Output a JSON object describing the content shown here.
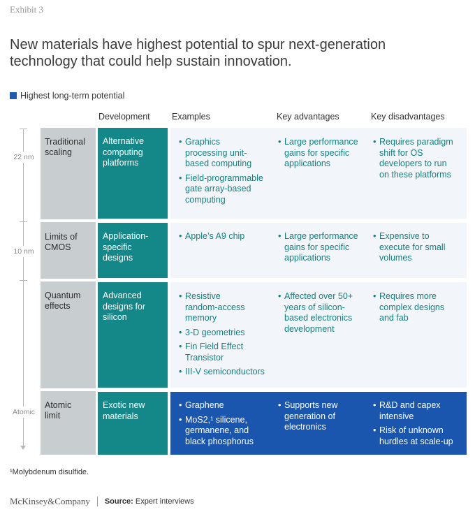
{
  "exhibit": "Exhibit 3",
  "title_line1": "New materials have highest potential to spur next-generation",
  "title_line2": "technology that could help sustain innovation.",
  "legend": {
    "label": "Highest long-term potential",
    "color": "#1c5bb0"
  },
  "headers": {
    "development": "Development",
    "examples": "Examples",
    "advantages": "Key advantages",
    "disadvantages": "Key disadvantages"
  },
  "scale": {
    "nm22": "22 nm",
    "nm10": "10 nm",
    "atomic": "Atomic"
  },
  "rows": [
    {
      "limit": [
        "Traditional",
        "scaling"
      ],
      "development": [
        "Alternative",
        "computing",
        "platforms"
      ],
      "examples": [
        [
          "Graphics",
          "processing unit-",
          "based computing"
        ],
        [
          "Field-programmable",
          "gate array-based",
          "computing"
        ]
      ],
      "advantages": [
        [
          "Large performance",
          "gains for specific",
          "applications"
        ]
      ],
      "disadvantages": [
        [
          "Requires paradigm",
          "shift for OS",
          "developers to run",
          "on these platforms"
        ]
      ]
    },
    {
      "limit": [
        "Limits of",
        "CMOS"
      ],
      "development": [
        "Application-",
        "specific",
        "designs"
      ],
      "examples": [
        [
          "Apple’s A9 chip"
        ]
      ],
      "advantages": [
        [
          "Large performance",
          "gains for specific",
          "applications"
        ]
      ],
      "disadvantages": [
        [
          "Expensive to",
          "execute for small",
          "volumes"
        ]
      ]
    },
    {
      "limit": [
        "Quantum",
        "effects"
      ],
      "development": [
        "Advanced",
        "designs for",
        "silicon"
      ],
      "examples": [
        [
          "Resistive",
          "random-access",
          "memory"
        ],
        [
          "3-D geometries"
        ],
        [
          "Fin Field Effect",
          "Transistor"
        ],
        [
          "III-V semiconductors"
        ]
      ],
      "advantages": [
        [
          "Affected over 50+",
          "years of silicon-",
          "based electronics",
          "development"
        ]
      ],
      "disadvantages": [
        [
          "Requires more",
          "complex designs",
          "and fab"
        ]
      ]
    },
    {
      "limit": [
        "Atomic",
        "limit"
      ],
      "development": [
        "Exotic new",
        "materials"
      ],
      "examples": [
        [
          "Graphene"
        ],
        [
          "MoS2,¹ silicene,",
          "germanene, and",
          "black phosphorus"
        ]
      ],
      "advantages": [
        [
          "Supports new",
          "generation of",
          "electronics"
        ]
      ],
      "disadvantages": [
        [
          "R&D and capex",
          "intensive"
        ],
        [
          "Risk of unknown",
          "hurdles at scale-up"
        ]
      ]
    }
  ],
  "bullet": "•",
  "footnote": "¹Molybdenum disulfide.",
  "brand": "McKinsey&Company",
  "source_label": "Source:",
  "source_text": "Expert interviews",
  "colors": {
    "teal": "#148888",
    "blue": "#1a56ae",
    "grey": "#c8cdd0",
    "rowbg": "#f2f6fa"
  }
}
